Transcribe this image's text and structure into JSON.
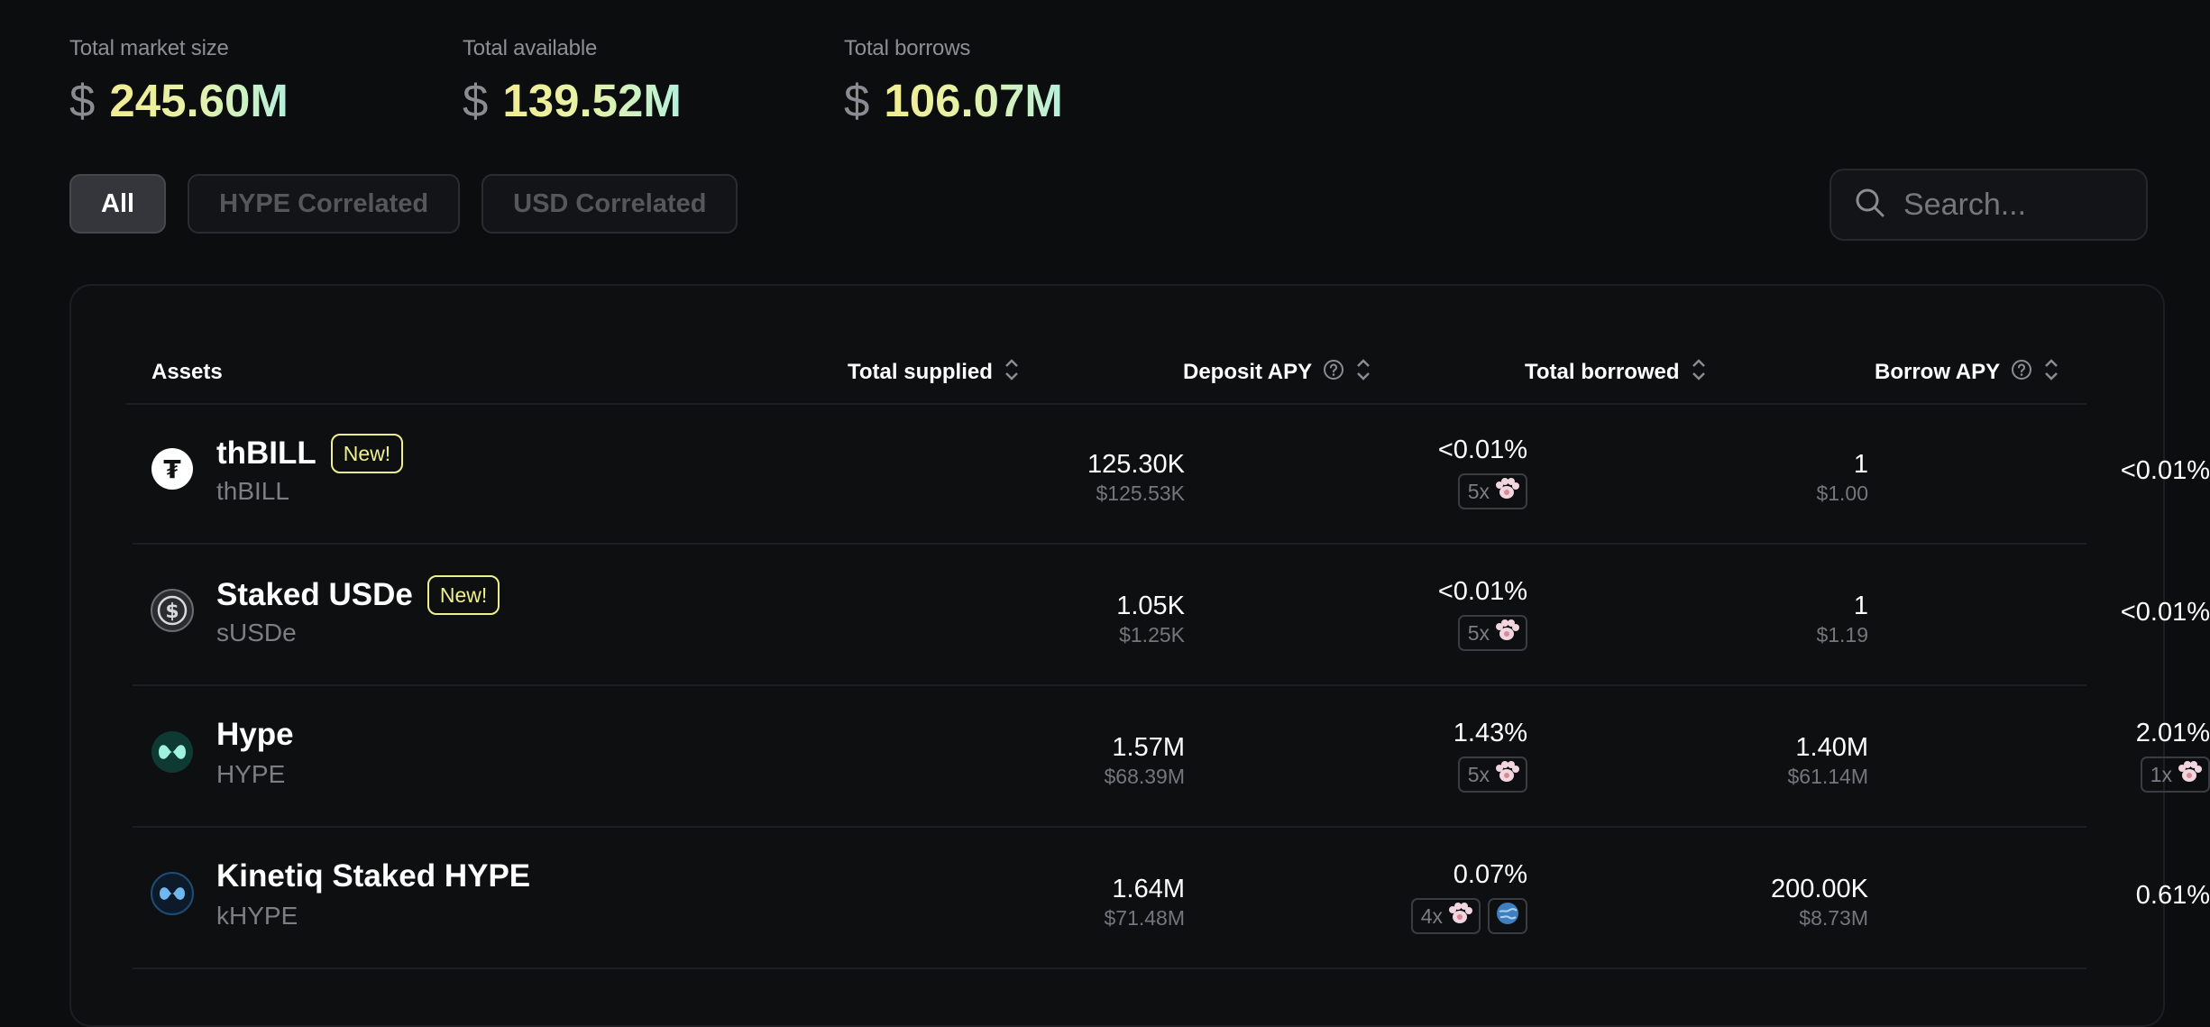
{
  "stats": [
    {
      "label": "Total market size",
      "currency": "$",
      "value": "245.60M"
    },
    {
      "label": "Total available",
      "currency": "$",
      "value": "139.52M"
    },
    {
      "label": "Total borrows",
      "currency": "$",
      "value": "106.07M"
    }
  ],
  "filters": [
    "All",
    "HYPE Correlated",
    "USD Correlated"
  ],
  "active_filter": "All",
  "search": {
    "placeholder": "Search..."
  },
  "table": {
    "columns": {
      "assets": "Assets",
      "total_supplied": "Total supplied",
      "deposit_apy": "Deposit APY",
      "total_borrowed": "Total borrowed",
      "borrow_apy": "Borrow APY"
    },
    "rows": [
      {
        "name": "thBILL",
        "symbol": "thBILL",
        "badge": "New!",
        "icon": "thbill-token-icon",
        "supplied": "125.30K",
        "supplied_usd": "$125.53K",
        "deposit_apy": "<0.01%",
        "deposit_multiplier": "5x",
        "borrowed": "1",
        "borrowed_usd": "$1.00",
        "borrow_apy": "<0.01%",
        "borrow_multiplier": ""
      },
      {
        "name": "Staked USDe",
        "symbol": "sUSDe",
        "badge": "New!",
        "icon": "susde-token-icon",
        "supplied": "1.05K",
        "supplied_usd": "$1.25K",
        "deposit_apy": "<0.01%",
        "deposit_multiplier": "5x",
        "borrowed": "1",
        "borrowed_usd": "$1.19",
        "borrow_apy": "<0.01%",
        "borrow_multiplier": ""
      },
      {
        "name": "Hype",
        "symbol": "HYPE",
        "badge": "",
        "icon": "hype-token-icon",
        "supplied": "1.57M",
        "supplied_usd": "$68.39M",
        "deposit_apy": "1.43%",
        "deposit_multiplier": "5x",
        "borrowed": "1.40M",
        "borrowed_usd": "$61.14M",
        "borrow_apy": "2.01%",
        "borrow_multiplier": "1x"
      },
      {
        "name": "Kinetiq Staked HYPE",
        "symbol": "kHYPE",
        "badge": "",
        "icon": "khype-token-icon",
        "supplied": "1.64M",
        "supplied_usd": "$71.48M",
        "deposit_apy": "0.07%",
        "deposit_multiplier": "4x",
        "borrowed": "200.00K",
        "borrowed_usd": "$8.73M",
        "borrow_apy": "0.61%",
        "borrow_multiplier": ""
      }
    ]
  },
  "colors": {
    "background": "#0c0d0f",
    "accent_yellow": "#eef08f",
    "accent_mint": "#b5f0dc",
    "muted_text": "#74767c"
  }
}
